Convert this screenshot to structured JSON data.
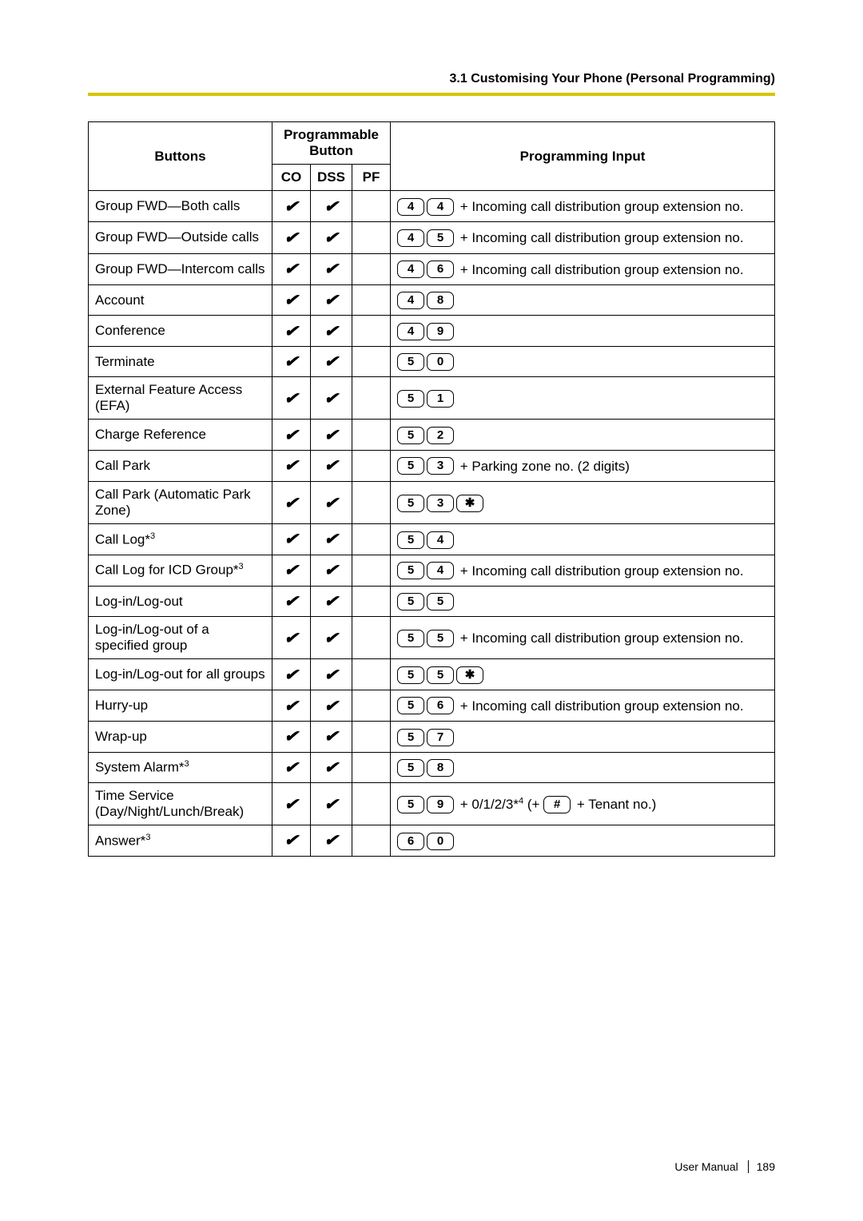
{
  "header": {
    "section_title": "3.1 Customising Your Phone (Personal Programming)"
  },
  "table": {
    "col_buttons": "Buttons",
    "col_group_prog": "Programmable Button",
    "col_co": "CO",
    "col_dss": "DSS",
    "col_pf": "PF",
    "col_input": "Programming Input",
    "checkmark": "✔",
    "icd_suffix": " + Incoming call distribution group extension no.",
    "rows": [
      {
        "label": "Group FWD—Both calls",
        "co": true,
        "dss": true,
        "pf": false,
        "keys": [
          "4",
          "4"
        ],
        "suffix_icd": true
      },
      {
        "label": "Group FWD—Outside calls",
        "co": true,
        "dss": true,
        "pf": false,
        "keys": [
          "4",
          "5"
        ],
        "suffix_icd": true
      },
      {
        "label": "Group FWD—Intercom calls",
        "co": true,
        "dss": true,
        "pf": false,
        "keys": [
          "4",
          "6"
        ],
        "suffix_icd": true
      },
      {
        "label": "Account",
        "co": true,
        "dss": true,
        "pf": false,
        "keys": [
          "4",
          "8"
        ]
      },
      {
        "label": "Conference",
        "co": true,
        "dss": true,
        "pf": false,
        "keys": [
          "4",
          "9"
        ]
      },
      {
        "label": "Terminate",
        "co": true,
        "dss": true,
        "pf": false,
        "keys": [
          "5",
          "0"
        ]
      },
      {
        "label": "External Feature Access (EFA)",
        "co": true,
        "dss": true,
        "pf": false,
        "keys": [
          "5",
          "1"
        ]
      },
      {
        "label": "Charge Reference",
        "co": true,
        "dss": true,
        "pf": false,
        "keys": [
          "5",
          "2"
        ]
      },
      {
        "label": "Call Park",
        "co": true,
        "dss": true,
        "pf": false,
        "keys": [
          "5",
          "3"
        ],
        "suffix_text": " + Parking zone no. (2 digits)"
      },
      {
        "label": "Call Park (Automatic Park Zone)",
        "co": true,
        "dss": true,
        "pf": false,
        "keys": [
          "5",
          "3",
          "✱"
        ]
      },
      {
        "label_html": "Call Log*<span class='sup'>3</span>",
        "co": true,
        "dss": true,
        "pf": false,
        "keys": [
          "5",
          "4"
        ]
      },
      {
        "label_html": "Call Log for ICD Group*<span class='sup'>3</span>",
        "co": true,
        "dss": true,
        "pf": false,
        "keys": [
          "5",
          "4"
        ],
        "suffix_icd": true
      },
      {
        "label": "Log-in/Log-out",
        "co": true,
        "dss": true,
        "pf": false,
        "keys": [
          "5",
          "5"
        ]
      },
      {
        "label": "Log-in/Log-out of a specified group",
        "co": true,
        "dss": true,
        "pf": false,
        "keys": [
          "5",
          "5"
        ],
        "suffix_icd": true
      },
      {
        "label": "Log-in/Log-out for all groups",
        "co": true,
        "dss": true,
        "pf": false,
        "keys": [
          "5",
          "5",
          "✱"
        ]
      },
      {
        "label": "Hurry-up",
        "co": true,
        "dss": true,
        "pf": false,
        "keys": [
          "5",
          "6"
        ],
        "suffix_icd": true
      },
      {
        "label": "Wrap-up",
        "co": true,
        "dss": true,
        "pf": false,
        "keys": [
          "5",
          "7"
        ]
      },
      {
        "label_html": "System Alarm*<span class='sup'>3</span>",
        "co": true,
        "dss": true,
        "pf": false,
        "keys": [
          "5",
          "8"
        ]
      },
      {
        "label": "Time Service (Day/Night/Lunch/Break)",
        "co": true,
        "dss": true,
        "pf": false,
        "keys": [
          "5",
          "9"
        ],
        "suffix_special": true,
        "suffix_part1": " + 0/1/2/3*",
        "suffix_sup": "4",
        "suffix_part2": " (+ ",
        "suffix_key": "#",
        "suffix_part3": " + Tenant no.)"
      },
      {
        "label_html": "Answer*<span class='sup'>3</span>",
        "co": true,
        "dss": true,
        "pf": false,
        "keys": [
          "6",
          "0"
        ]
      }
    ]
  },
  "footer": {
    "manual": "User Manual",
    "page": "189"
  }
}
